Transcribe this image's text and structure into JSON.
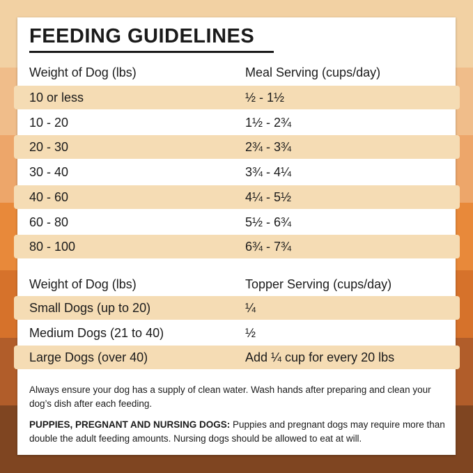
{
  "title": "FEEDING GUIDELINES",
  "meal_table": {
    "headers": [
      "Weight of Dog (lbs)",
      "Meal Serving (cups/day)"
    ],
    "rows": [
      [
        "10 or less",
        "½ - 1½"
      ],
      [
        "10 - 20",
        "1½ - 2¾"
      ],
      [
        "20 - 30",
        "2¾ - 3¾"
      ],
      [
        "30 - 40",
        "3¾ - 4¼"
      ],
      [
        "40 - 60",
        "4¼ - 5½"
      ],
      [
        "60 - 80",
        "5½ - 6¾"
      ],
      [
        "80 - 100",
        "6¾ - 7¾"
      ]
    ]
  },
  "topper_table": {
    "headers": [
      "Weight of Dog (lbs)",
      "Topper Serving (cups/day)"
    ],
    "rows": [
      [
        "Small Dogs (up to 20)",
        "¼"
      ],
      [
        "Medium Dogs (21 to 40)",
        "½"
      ],
      [
        "Large Dogs (over 40)",
        "Add ¼ cup for every 20 lbs"
      ]
    ]
  },
  "note1": "Always ensure your dog has a supply of clean water. Wash hands after preparing and clean your dog’s dish after each feeding.",
  "note2_bold": "PUPPIES, PREGNANT AND NURSING DOGS:",
  "note2_text": " Puppies and pregnant dogs may require more than double the adult feeding amounts. Nursing dogs should be allowed to eat at will.",
  "colors": {
    "bands": [
      "#f2d1a3",
      "#f0bd8a",
      "#eda66a",
      "#e8893a",
      "#d6722b",
      "#b15d2a",
      "#7f4521"
    ],
    "row_shade": "#f5dcb4"
  }
}
